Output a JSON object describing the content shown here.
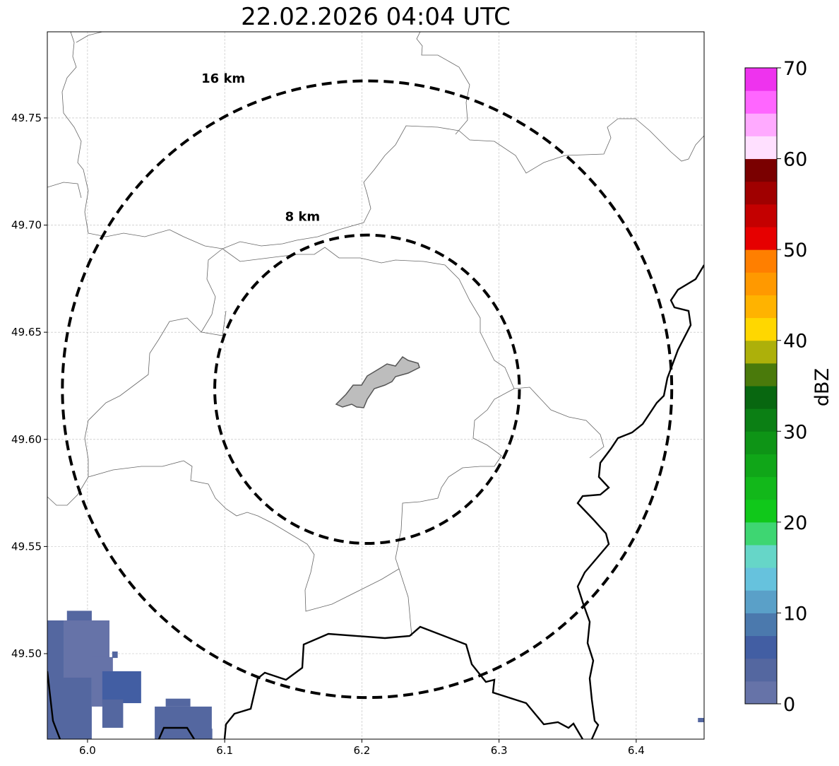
{
  "chart_data": {
    "type": "heatmap",
    "title": "22.02.2026 04:04 UTC",
    "xlim": [
      5.9707,
      6.4495
    ],
    "ylim": [
      49.4601,
      49.7902
    ],
    "x_ticks": [
      6.0,
      6.1,
      6.2,
      6.3,
      6.4
    ],
    "x_tick_labels": [
      "6.0",
      "6.1",
      "6.2",
      "6.3",
      "6.4"
    ],
    "y_ticks": [
      49.5,
      49.55,
      49.6,
      49.65,
      49.7,
      49.75
    ],
    "y_tick_labels": [
      "49.50",
      "49.55",
      "49.60",
      "49.65",
      "49.70",
      "49.75"
    ],
    "grid": true,
    "radar_center": [
      6.2038,
      49.6234
    ],
    "range_rings": [
      {
        "radius_km": 16,
        "label": "16 km",
        "label_pos": [
          6.083,
          49.7665
        ]
      },
      {
        "radius_km": 8,
        "label": "8 km",
        "label_pos": [
          6.144,
          49.702
        ]
      }
    ],
    "reflectivity_blocks_lon0_lat0_lon1_lat1_dbz": [
      [
        5.9707,
        49.4601,
        6.0031,
        49.5155,
        3
      ],
      [
        5.9825,
        49.4888,
        6.016,
        49.5155,
        2
      ],
      [
        5.985,
        49.5155,
        6.0031,
        49.52,
        3
      ],
      [
        6.0031,
        49.4753,
        6.0185,
        49.4984,
        2
      ],
      [
        6.0108,
        49.4769,
        6.0391,
        49.4918,
        5
      ],
      [
        6.0108,
        49.4654,
        6.026,
        49.4786,
        3
      ],
      [
        6.049,
        49.4601,
        6.0906,
        49.4753,
        3
      ],
      [
        6.057,
        49.4753,
        6.075,
        49.479,
        3
      ],
      [
        6.018,
        49.498,
        6.022,
        49.501,
        3
      ],
      [
        6.086,
        49.4601,
        6.091,
        49.465,
        3
      ],
      [
        6.445,
        49.468,
        6.4495,
        49.47,
        3
      ]
    ],
    "colorbar": {
      "label": "dBZ",
      "range": [
        0,
        70
      ],
      "ticks": [
        0,
        10,
        20,
        30,
        40,
        50,
        60,
        70
      ],
      "tick_labels": [
        "0",
        "10",
        "20",
        "30",
        "40",
        "50",
        "60",
        "70"
      ],
      "step": 2.5,
      "colors": [
        "#6673a8",
        "#5467a0",
        "#425ea3",
        "#4b79ad",
        "#5aa0c8",
        "#66c2dd",
        "#66d6c8",
        "#3ed672",
        "#10c81a",
        "#12b81a",
        "#10a618",
        "#0e9416",
        "#0b7f14",
        "#086710",
        "#4a7a0b",
        "#adb00a",
        "#ffd700",
        "#ffb300",
        "#ff9900",
        "#ff7f00",
        "#e60000",
        "#c40000",
        "#a00000",
        "#7a0000",
        "#ffe0ff",
        "#ffaaff",
        "#ff66ff",
        "#ee33ee"
      ]
    }
  }
}
